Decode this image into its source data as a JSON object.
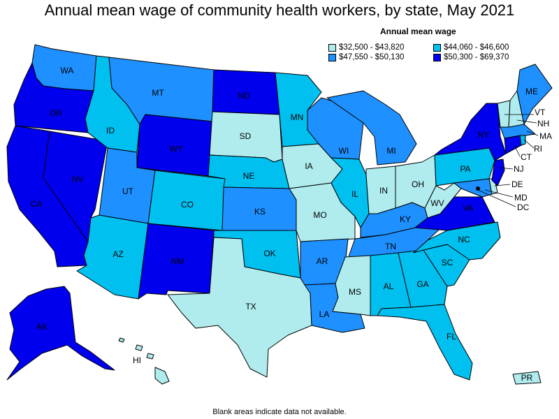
{
  "title": "Annual mean wage of community health workers, by state, May 2021",
  "legend": {
    "title": "Annual mean wage",
    "items": [
      {
        "range": "$32,500 - $43,820",
        "color": "#b0ecee"
      },
      {
        "range": "$44,060 - $46,600",
        "color": "#00c0f0"
      },
      {
        "range": "$47,550 - $50,130",
        "color": "#1e90ff"
      },
      {
        "range": "$50,300 - $69,370",
        "color": "#0000ee"
      }
    ]
  },
  "footnote": "Blank areas indicate data not available.",
  "states": {
    "WA": {
      "label": "WA",
      "tier": 2
    },
    "OR": {
      "label": "OR",
      "tier": 3
    },
    "CA": {
      "label": "CA",
      "tier": 3
    },
    "NV": {
      "label": "NV",
      "tier": 3
    },
    "ID": {
      "label": "ID",
      "tier": 1
    },
    "MT": {
      "label": "MT",
      "tier": 2
    },
    "WY": {
      "label": "WY",
      "tier": 3
    },
    "UT": {
      "label": "UT",
      "tier": 2
    },
    "AZ": {
      "label": "AZ",
      "tier": 1
    },
    "CO": {
      "label": "CO",
      "tier": 1
    },
    "NM": {
      "label": "NM",
      "tier": 3
    },
    "ND": {
      "label": "ND",
      "tier": 3
    },
    "SD": {
      "label": "SD",
      "tier": 0
    },
    "NE": {
      "label": "NE",
      "tier": 1
    },
    "KS": {
      "label": "KS",
      "tier": 2
    },
    "OK": {
      "label": "OK",
      "tier": 1
    },
    "TX": {
      "label": "TX",
      "tier": 0
    },
    "MN": {
      "label": "MN",
      "tier": 1
    },
    "IA": {
      "label": "IA",
      "tier": 0
    },
    "MO": {
      "label": "MO",
      "tier": 0
    },
    "AR": {
      "label": "AR",
      "tier": 2
    },
    "LA": {
      "label": "LA",
      "tier": 2
    },
    "WI": {
      "label": "WI",
      "tier": 2
    },
    "IL": {
      "label": "IL",
      "tier": 1
    },
    "MI": {
      "label": "MI",
      "tier": 2
    },
    "IN": {
      "label": "IN",
      "tier": 0
    },
    "OH": {
      "label": "OH",
      "tier": 0
    },
    "KY": {
      "label": "KY",
      "tier": 2
    },
    "TN": {
      "label": "TN",
      "tier": 2
    },
    "MS": {
      "label": "MS",
      "tier": 0
    },
    "AL": {
      "label": "AL",
      "tier": 1
    },
    "GA": {
      "label": "GA",
      "tier": 1
    },
    "FL": {
      "label": "FL",
      "tier": 1
    },
    "SC": {
      "label": "SC",
      "tier": 1
    },
    "NC": {
      "label": "NC",
      "tier": 1
    },
    "VA": {
      "label": "VA",
      "tier": 3
    },
    "WV": {
      "label": "WV",
      "tier": 0
    },
    "PA": {
      "label": "PA",
      "tier": 1
    },
    "NY": {
      "label": "NY",
      "tier": 3
    },
    "ME": {
      "label": "ME",
      "tier": 2
    },
    "VT": {
      "label": "VT",
      "tier": 0
    },
    "NH": {
      "label": "NH",
      "tier": 0
    },
    "MA": {
      "label": "MA",
      "tier": 2
    },
    "RI": {
      "label": "RI",
      "tier": 1
    },
    "CT": {
      "label": "CT",
      "tier": 3
    },
    "NJ": {
      "label": "NJ",
      "tier": 3
    },
    "DE": {
      "label": "DE",
      "tier": 0
    },
    "MD": {
      "label": "MD",
      "tier": 2
    },
    "DC": {
      "label": "DC",
      "tier": 3
    },
    "AK": {
      "label": "AK",
      "tier": 3
    },
    "HI": {
      "label": "HI",
      "tier": 0
    },
    "PR": {
      "label": "PR",
      "tier": 0
    }
  }
}
